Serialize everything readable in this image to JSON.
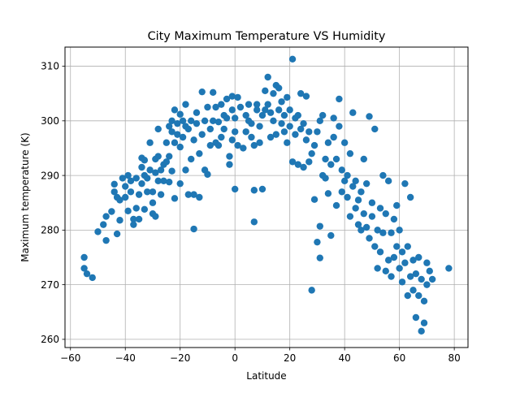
{
  "chart_data": {
    "type": "scatter",
    "title": "City Maximum Temperature VS Humidity",
    "xlabel": "Latitude",
    "ylabel": "Maximum temperature (K)",
    "xlim": [
      -62,
      85
    ],
    "ylim": [
      258.5,
      313.5
    ],
    "xticks": [
      -60,
      -40,
      -20,
      0,
      20,
      40,
      60,
      80
    ],
    "yticks": [
      260,
      270,
      280,
      290,
      300,
      310
    ],
    "grid": true,
    "marker_color": "#1f77b4",
    "series": [
      {
        "points": [
          [
            -55,
            275
          ],
          [
            -55,
            273
          ],
          [
            -54,
            272
          ],
          [
            -52,
            271.3
          ],
          [
            -50,
            279.7
          ],
          [
            -48,
            281
          ],
          [
            -47,
            282.5
          ],
          [
            -47,
            278.1
          ],
          [
            -45,
            283.4
          ],
          [
            -44,
            288.4
          ],
          [
            -44,
            287
          ],
          [
            -43,
            286
          ],
          [
            -43,
            279.3
          ],
          [
            -42,
            281.8
          ],
          [
            -42,
            285.5
          ],
          [
            -41,
            289.5
          ],
          [
            -40,
            286
          ],
          [
            -40,
            288
          ],
          [
            -39,
            290
          ],
          [
            -39,
            283.5
          ],
          [
            -38,
            287
          ],
          [
            -38,
            289
          ],
          [
            -37,
            281
          ],
          [
            -37,
            282
          ],
          [
            -36,
            284
          ],
          [
            -36,
            289.5
          ],
          [
            -35,
            282
          ],
          [
            -35,
            286.5
          ],
          [
            -34,
            288.5
          ],
          [
            -34,
            291.5
          ],
          [
            -34,
            293.2
          ],
          [
            -33,
            283.8
          ],
          [
            -33,
            290
          ],
          [
            -33,
            292.8
          ],
          [
            -32,
            287
          ],
          [
            -32,
            289.5
          ],
          [
            -31,
            291
          ],
          [
            -31,
            296
          ],
          [
            -30,
            285
          ],
          [
            -30,
            287
          ],
          [
            -30,
            283
          ],
          [
            -29,
            282.5
          ],
          [
            -29,
            290.5
          ],
          [
            -29,
            293
          ],
          [
            -28,
            289
          ],
          [
            -28,
            298.5
          ],
          [
            -28,
            293.5
          ],
          [
            -27,
            291
          ],
          [
            -27,
            286.5
          ],
          [
            -26,
            292
          ],
          [
            -26,
            289
          ],
          [
            -25,
            292.5
          ],
          [
            -25,
            296
          ],
          [
            -24,
            299
          ],
          [
            -24,
            293.5
          ],
          [
            -24,
            288.8
          ],
          [
            -23,
            290.8
          ],
          [
            -23,
            298
          ],
          [
            -23,
            300
          ],
          [
            -22,
            296
          ],
          [
            -22,
            302
          ],
          [
            -22,
            285.8
          ],
          [
            -21,
            297.5
          ],
          [
            -21,
            299.5
          ],
          [
            -20,
            301.2
          ],
          [
            -20,
            288.5
          ],
          [
            -20,
            295.2
          ],
          [
            -19,
            297
          ],
          [
            -19,
            300
          ],
          [
            -18,
            303
          ],
          [
            -18,
            299
          ],
          [
            -18,
            291
          ],
          [
            -17,
            298.5
          ],
          [
            -17,
            286.5
          ],
          [
            -16,
            300
          ],
          [
            -16,
            293
          ],
          [
            -15,
            296.5
          ],
          [
            -15,
            286.5
          ],
          [
            -15,
            280.2
          ],
          [
            -14,
            299.5
          ],
          [
            -14,
            301.5
          ],
          [
            -13,
            286
          ],
          [
            -13,
            294
          ],
          [
            -12,
            305.3
          ],
          [
            -12,
            297.5
          ],
          [
            -11,
            291
          ],
          [
            -11,
            300
          ],
          [
            -10,
            302.5
          ],
          [
            -10,
            290.2
          ],
          [
            -9,
            295.5
          ],
          [
            -9,
            298.5
          ],
          [
            -8,
            305.2
          ],
          [
            -8,
            300
          ],
          [
            -7,
            296
          ],
          [
            -7,
            302.5
          ],
          [
            -6,
            295.5
          ],
          [
            -6,
            299.8
          ],
          [
            -5,
            297
          ],
          [
            -5,
            303
          ],
          [
            -4,
            298.5
          ],
          [
            -4,
            301
          ],
          [
            -3,
            304
          ],
          [
            -3,
            300.5
          ],
          [
            -2,
            292
          ],
          [
            -2,
            293.5
          ],
          [
            -1,
            296.5
          ],
          [
            -1,
            302
          ],
          [
            -1,
            304.5
          ],
          [
            0,
            287.5
          ],
          [
            0,
            298
          ],
          [
            0,
            300.5
          ],
          [
            1,
            295.5
          ],
          [
            1,
            304.3
          ],
          [
            2,
            302.5
          ],
          [
            3,
            295
          ],
          [
            4,
            298
          ],
          [
            4,
            301
          ],
          [
            5,
            300
          ],
          [
            5,
            303
          ],
          [
            6,
            297
          ],
          [
            6,
            299.5
          ],
          [
            7,
            295.5
          ],
          [
            7,
            287.3
          ],
          [
            7,
            281.5
          ],
          [
            8,
            302
          ],
          [
            8,
            303
          ],
          [
            9,
            296
          ],
          [
            9,
            299
          ],
          [
            10,
            287.5
          ],
          [
            10,
            301
          ],
          [
            11,
            302
          ],
          [
            11,
            305.5
          ],
          [
            12,
            308
          ],
          [
            12,
            303
          ],
          [
            13,
            297
          ],
          [
            13,
            301.5
          ],
          [
            14,
            300
          ],
          [
            14,
            305
          ],
          [
            15,
            306.5
          ],
          [
            15,
            297.5
          ],
          [
            16,
            302
          ],
          [
            16,
            306
          ],
          [
            17,
            299.5
          ],
          [
            17,
            303.5
          ],
          [
            18,
            298
          ],
          [
            18,
            301
          ],
          [
            19,
            296
          ],
          [
            19,
            304.3
          ],
          [
            20,
            302
          ],
          [
            20,
            299
          ],
          [
            21,
            292.5
          ],
          [
            21,
            311.3
          ],
          [
            22,
            297.5
          ],
          [
            22,
            300.5
          ],
          [
            23,
            292
          ],
          [
            23,
            301
          ],
          [
            24,
            298.5
          ],
          [
            24,
            305
          ],
          [
            25,
            291.5
          ],
          [
            25,
            299.5
          ],
          [
            26,
            296.5
          ],
          [
            26,
            304.5
          ],
          [
            27,
            292.5
          ],
          [
            27,
            298
          ],
          [
            28,
            269
          ],
          [
            28,
            294
          ],
          [
            29,
            295.5
          ],
          [
            29,
            285.6
          ],
          [
            30,
            298
          ],
          [
            30,
            277.8
          ],
          [
            31,
            300
          ],
          [
            31,
            274.9
          ],
          [
            31,
            280.7
          ],
          [
            32,
            290
          ],
          [
            32,
            301
          ],
          [
            33,
            293
          ],
          [
            33,
            289.5
          ],
          [
            34,
            286.7
          ],
          [
            34,
            296
          ],
          [
            35,
            279
          ],
          [
            35,
            292
          ],
          [
            36,
            300.5
          ],
          [
            36,
            297
          ],
          [
            37,
            293
          ],
          [
            37,
            284.5
          ],
          [
            38,
            304
          ],
          [
            38,
            299
          ],
          [
            39,
            291
          ],
          [
            39,
            287
          ],
          [
            40,
            289
          ],
          [
            40,
            296
          ],
          [
            41,
            286
          ],
          [
            41,
            290
          ],
          [
            42,
            282.5
          ],
          [
            42,
            294
          ],
          [
            43,
            288
          ],
          [
            43,
            301.5
          ],
          [
            44,
            284
          ],
          [
            44,
            289
          ],
          [
            45,
            281
          ],
          [
            45,
            285.5
          ],
          [
            46,
            280
          ],
          [
            46,
            287
          ],
          [
            47,
            283
          ],
          [
            47,
            293
          ],
          [
            48,
            280.5
          ],
          [
            48,
            288.5
          ],
          [
            49,
            278.5
          ],
          [
            49,
            300.8
          ],
          [
            50,
            282.5
          ],
          [
            50,
            285
          ],
          [
            51,
            277
          ],
          [
            51,
            298.5
          ],
          [
            52,
            273
          ],
          [
            52,
            280
          ],
          [
            53,
            276
          ],
          [
            53,
            284
          ],
          [
            54,
            279.5
          ],
          [
            54,
            290
          ],
          [
            55,
            272.5
          ],
          [
            55,
            283
          ],
          [
            56,
            274.5
          ],
          [
            56,
            289
          ],
          [
            57,
            271.5
          ],
          [
            57,
            279.5
          ],
          [
            58,
            275
          ],
          [
            58,
            282
          ],
          [
            59,
            277
          ],
          [
            59,
            284.5
          ],
          [
            60,
            273
          ],
          [
            60,
            280
          ],
          [
            61,
            270.5
          ],
          [
            61,
            276
          ],
          [
            62,
            274
          ],
          [
            62,
            288.5
          ],
          [
            63,
            268
          ],
          [
            63,
            277
          ],
          [
            64,
            271.5
          ],
          [
            64,
            286
          ],
          [
            65,
            269
          ],
          [
            65,
            274.5
          ],
          [
            66,
            264
          ],
          [
            66,
            272
          ],
          [
            67,
            268
          ],
          [
            67,
            275
          ],
          [
            68,
            271
          ],
          [
            68,
            261.5
          ],
          [
            69,
            263
          ],
          [
            69,
            267
          ],
          [
            70,
            270
          ],
          [
            70,
            274
          ],
          [
            71,
            272.5
          ],
          [
            72,
            271
          ],
          [
            78,
            273
          ]
        ]
      }
    ]
  }
}
